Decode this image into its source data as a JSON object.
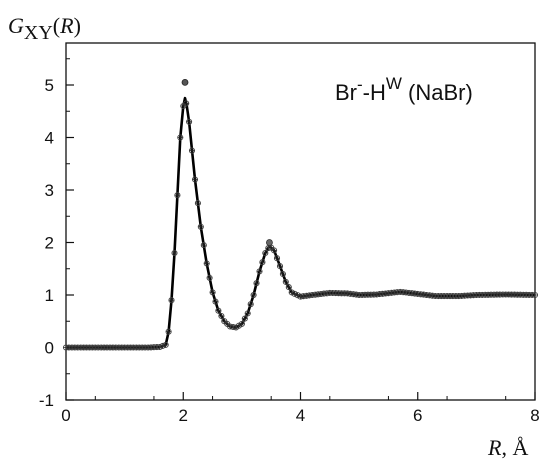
{
  "chart_data": {
    "type": "line",
    "ylabel": {
      "main": "G",
      "sub": "XY",
      "arg": "R"
    },
    "xlabel": {
      "var": "R",
      "unit": ", Å"
    },
    "xlim": [
      0,
      8
    ],
    "ylim": [
      -1,
      5.8
    ],
    "xticks": [
      0,
      2,
      4,
      6,
      8
    ],
    "yticks": [
      -1,
      0,
      1,
      2,
      3,
      4,
      5
    ],
    "grid": false,
    "annotation": {
      "base": "Br",
      "sup1": "-",
      "mid": "-H",
      "sup2": "W",
      "tail": " (NaBr)"
    },
    "series": [
      {
        "style": "line with dense overlapping markers",
        "points": [
          [
            0.0,
            0.0
          ],
          [
            0.5,
            0.0
          ],
          [
            1.0,
            0.0
          ],
          [
            1.4,
            0.0
          ],
          [
            1.6,
            0.01
          ],
          [
            1.7,
            0.05
          ],
          [
            1.75,
            0.3
          ],
          [
            1.8,
            0.9
          ],
          [
            1.85,
            1.8
          ],
          [
            1.9,
            2.9
          ],
          [
            1.95,
            4.0
          ],
          [
            2.0,
            4.6
          ],
          [
            2.03,
            4.75
          ],
          [
            2.06,
            4.6
          ],
          [
            2.1,
            4.3
          ],
          [
            2.2,
            3.2
          ],
          [
            2.3,
            2.3
          ],
          [
            2.4,
            1.6
          ],
          [
            2.5,
            1.05
          ],
          [
            2.6,
            0.7
          ],
          [
            2.7,
            0.5
          ],
          [
            2.8,
            0.4
          ],
          [
            2.9,
            0.38
          ],
          [
            3.0,
            0.45
          ],
          [
            3.1,
            0.65
          ],
          [
            3.2,
            1.0
          ],
          [
            3.3,
            1.45
          ],
          [
            3.4,
            1.8
          ],
          [
            3.47,
            1.93
          ],
          [
            3.55,
            1.85
          ],
          [
            3.65,
            1.55
          ],
          [
            3.75,
            1.25
          ],
          [
            3.85,
            1.05
          ],
          [
            4.0,
            0.97
          ],
          [
            4.2,
            1.0
          ],
          [
            4.5,
            1.04
          ],
          [
            4.8,
            1.03
          ],
          [
            5.0,
            1.0
          ],
          [
            5.3,
            1.01
          ],
          [
            5.7,
            1.06
          ],
          [
            6.0,
            1.02
          ],
          [
            6.3,
            0.98
          ],
          [
            6.7,
            0.98
          ],
          [
            7.0,
            1.0
          ],
          [
            7.5,
            1.01
          ],
          [
            8.0,
            1.0
          ]
        ]
      }
    ]
  }
}
